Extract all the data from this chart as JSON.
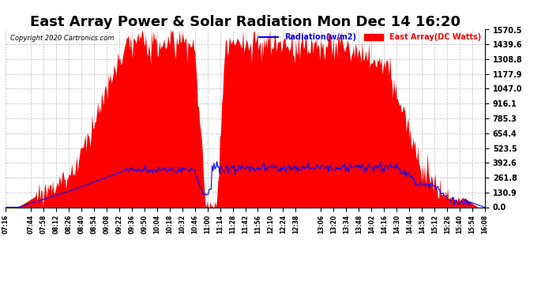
{
  "title": "East Array Power & Solar Radiation Mon Dec 14 16:20",
  "copyright": "Copyright 2020 Cartronics.com",
  "legend_radiation": "Radiation(w/m2)",
  "legend_east": "East Array(DC Watts)",
  "legend_radiation_color": "blue",
  "legend_east_color": "red",
  "ymin": 0.0,
  "ymax": 1570.5,
  "yticks": [
    0.0,
    130.9,
    261.8,
    392.6,
    523.5,
    654.4,
    785.3,
    916.1,
    1047.0,
    1177.9,
    1308.8,
    1439.6,
    1570.5
  ],
  "background_color": "#ffffff",
  "grid_color": "#bbbbbb",
  "title_fontsize": 13
}
